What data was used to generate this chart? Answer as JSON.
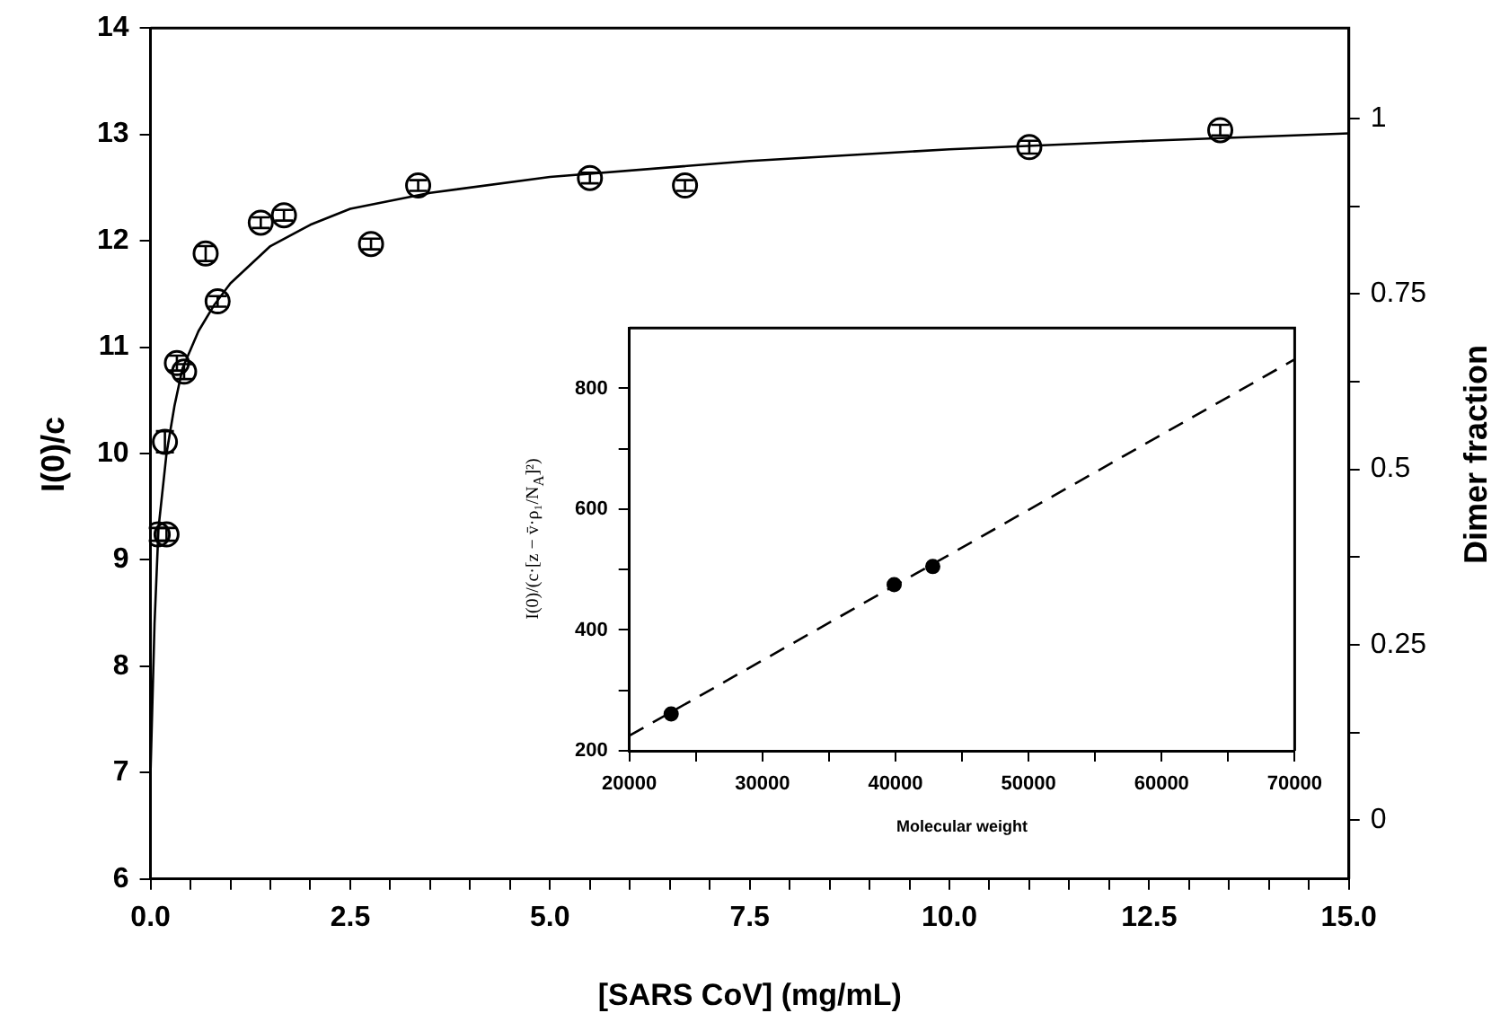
{
  "chart_data": [
    {
      "type": "scatter",
      "xlabel": "[SARS CoV] (mg/mL)",
      "ylabel": "I(0)/c",
      "y2label": "Dimer fraction",
      "xlim": [
        0,
        15
      ],
      "ylim": [
        6,
        14
      ],
      "y2lim": [
        -0.084,
        1.129
      ],
      "xticks": [
        {
          "value": 0,
          "label": "0.0"
        },
        {
          "value": 0.5,
          "label": null
        },
        {
          "value": 1,
          "label": null
        },
        {
          "value": 1.5,
          "label": null
        },
        {
          "value": 2,
          "label": null
        },
        2.5,
        {
          "value": 3,
          "label": null
        },
        {
          "value": 3.5,
          "label": null
        },
        {
          "value": 4,
          "label": null
        },
        {
          "value": 4.5,
          "label": null
        },
        {
          "value": 5,
          "label": "5.0"
        },
        {
          "value": 5.5,
          "label": null
        },
        {
          "value": 6,
          "label": null
        },
        {
          "value": 6.5,
          "label": null
        },
        {
          "value": 7,
          "label": null
        },
        7.5,
        {
          "value": 8,
          "label": null
        },
        {
          "value": 8.5,
          "label": null
        },
        {
          "value": 9,
          "label": null
        },
        {
          "value": 9.5,
          "label": null
        },
        {
          "value": 10,
          "label": "10.0"
        },
        {
          "value": 10.5,
          "label": null
        },
        {
          "value": 11,
          "label": null
        },
        {
          "value": 11.5,
          "label": null
        },
        {
          "value": 12,
          "label": null
        },
        12.5,
        {
          "value": 13,
          "label": null
        },
        {
          "value": 13.5,
          "label": null
        },
        {
          "value": 14,
          "label": null
        },
        {
          "value": 14.5,
          "label": null
        },
        {
          "value": 15,
          "label": "15.0"
        }
      ],
      "yticks": [
        6,
        7,
        8,
        9,
        10,
        11,
        12,
        13,
        14
      ],
      "y2ticks": [
        0,
        {
          "value": 0.125,
          "label": null
        },
        0.25,
        {
          "value": 0.375,
          "label": null
        },
        0.5,
        {
          "value": 0.625,
          "label": null
        },
        0.75,
        {
          "value": 0.875,
          "label": null
        },
        1
      ],
      "grid": false,
      "marker": "circle",
      "series": [
        {
          "type": "scatter",
          "color": "#000000",
          "x": [
            0.09,
            0.2,
            0.18,
            0.33,
            0.42,
            0.69,
            0.84,
            1.38,
            1.67,
            2.76,
            3.35,
            5.5,
            6.69,
            11.0,
            13.39
          ],
          "values": [
            9.24,
            9.24,
            10.11,
            10.85,
            10.77,
            11.88,
            11.43,
            12.17,
            12.24,
            11.97,
            12.52,
            12.59,
            12.52,
            12.88,
            13.04
          ],
          "errors": [
            0.06,
            0.06,
            0.1,
            0.07,
            0.07,
            0.07,
            0.05,
            0.05,
            0.05,
            0.05,
            0.05,
            0.05,
            0.05,
            0.06,
            0.05
          ]
        },
        {
          "type": "line",
          "color": "#000000",
          "marker": "none",
          "line_style": "solid",
          "x": [
            0,
            0.05,
            0.1,
            0.2,
            0.3,
            0.4,
            0.6,
            0.8,
            1.0,
            1.5,
            2.0,
            2.5,
            3.5,
            5,
            7.5,
            10,
            12.5,
            15
          ],
          "values": [
            7.0,
            8.4,
            9.3,
            10.0,
            10.45,
            10.8,
            11.15,
            11.4,
            11.6,
            11.95,
            12.15,
            12.3,
            12.45,
            12.6,
            12.75,
            12.86,
            12.94,
            13.01
          ]
        }
      ]
    },
    {
      "type": "scatter",
      "xlabel": "Molecular weight",
      "ylabel": "I(0)/(c·[z − v̄·ρ₁/N$_{A}$]²)",
      "xlim": [
        20000,
        70000
      ],
      "ylim": [
        200,
        900
      ],
      "xticks": [
        20000,
        {
          "value": 25000,
          "label": null
        },
        30000,
        {
          "value": 35000,
          "label": null
        },
        40000,
        {
          "value": 45000,
          "label": null
        },
        50000,
        {
          "value": 55000,
          "label": null
        },
        60000,
        {
          "value": 65000,
          "label": null
        },
        70000
      ],
      "yticks": [
        200,
        {
          "value": 300,
          "label": null
        },
        400,
        {
          "value": 500,
          "label": null
        },
        600,
        {
          "value": 700,
          "label": null
        },
        800
      ],
      "grid": false,
      "marker": "circle",
      "series": [
        {
          "type": "scatter",
          "color": "#000000",
          "x": [
            23140,
            39900,
            42800
          ],
          "values": [
            261,
            475,
            505
          ]
        },
        {
          "type": "line",
          "color": "#000000",
          "marker": "none",
          "line_style": "dashed",
          "x": [
            20000,
            70000
          ],
          "values": [
            225,
            848
          ]
        }
      ]
    }
  ]
}
